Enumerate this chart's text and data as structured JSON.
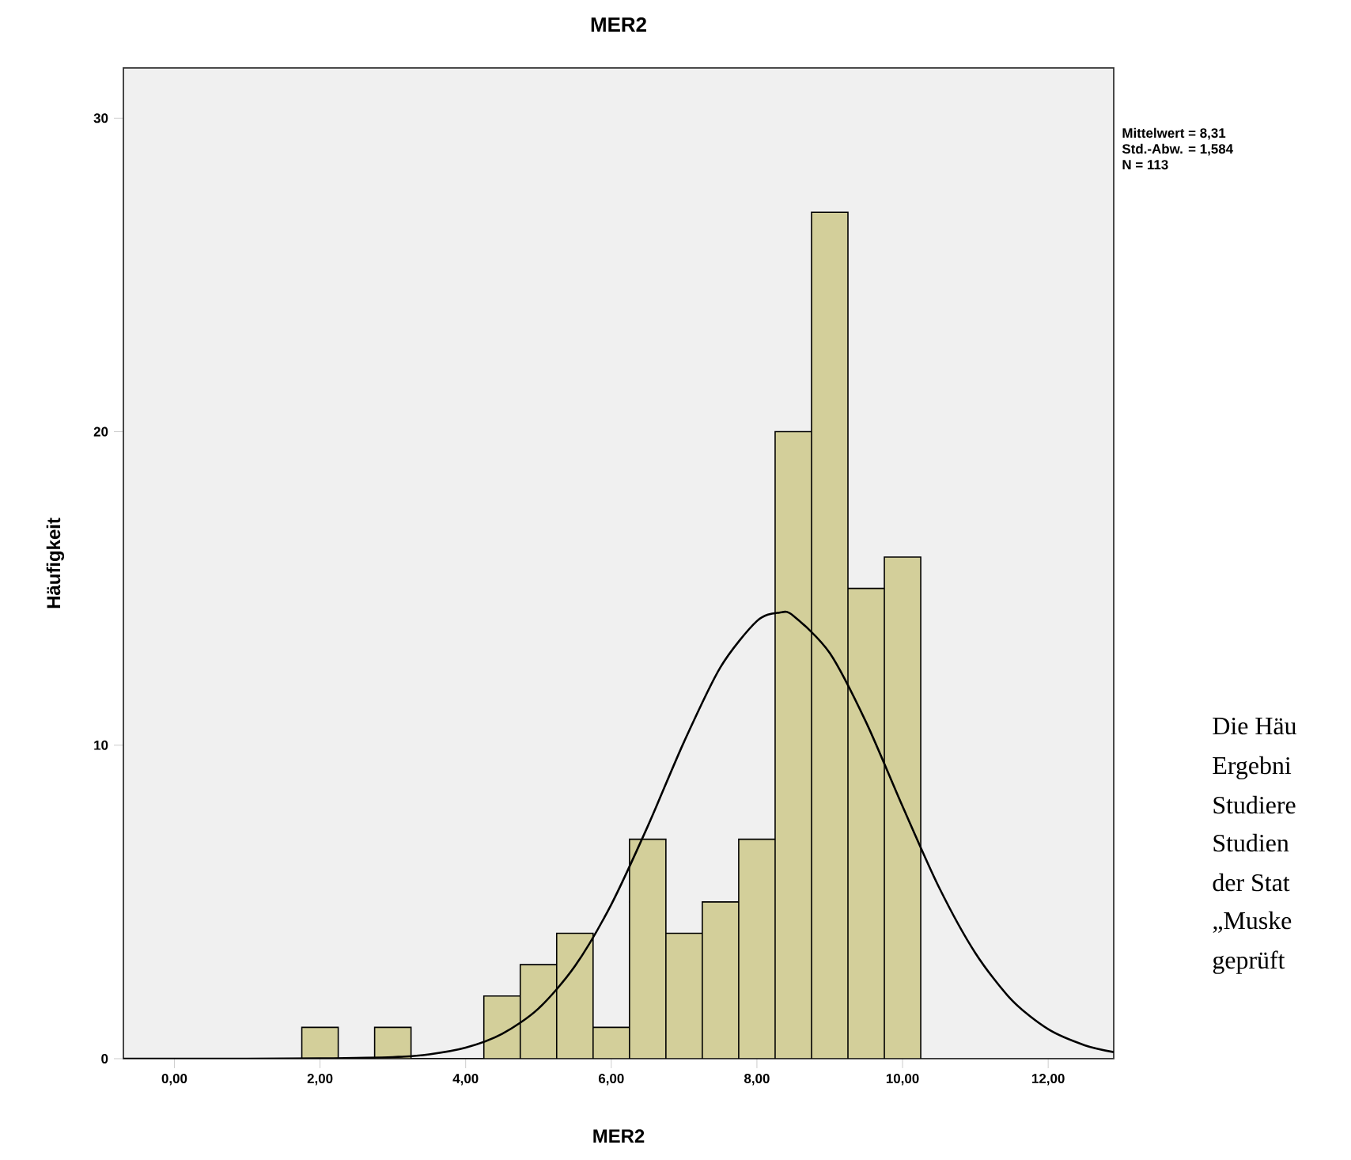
{
  "chart_data": {
    "type": "histogram",
    "title": "MER2",
    "xlabel": "MER2",
    "ylabel": "Häufigkeit",
    "bins": [
      1.75,
      2.25,
      2.75,
      3.25,
      3.75,
      4.25,
      4.75,
      5.25,
      5.75,
      6.25,
      6.75,
      7.25,
      7.75,
      8.25,
      8.75,
      9.25,
      9.75,
      10.25
    ],
    "values": [
      1,
      0,
      1,
      0,
      0,
      2,
      3,
      4,
      1,
      7,
      4,
      5,
      7,
      20,
      27,
      15,
      16
    ],
    "color": "#d3cf9a",
    "series": [
      {
        "type": "line",
        "color": "#000000",
        "x": [
          -0.7,
          0,
          1,
          2,
          3,
          3.5,
          4,
          4.5,
          5,
          5.5,
          6,
          6.5,
          7,
          7.5,
          8,
          8.31,
          8.5,
          9,
          9.5,
          10,
          10.5,
          11,
          11.5,
          12,
          12.5,
          12.9
        ],
        "values": [
          0,
          0,
          0,
          0.01,
          0.05,
          0.14,
          0.35,
          0.79,
          1.6,
          2.95,
          4.92,
          7.41,
          10.11,
          12.49,
          13.96,
          14.23,
          14.13,
          12.94,
          10.73,
          8.05,
          5.47,
          3.37,
          1.87,
          0.94,
          0.43,
          0.21
        ]
      }
    ],
    "xlim": [
      -0.7,
      12.9
    ],
    "ylim": [
      0,
      31.6
    ],
    "xticks": [
      {
        "value": 0,
        "label": "0,00"
      },
      {
        "value": 2,
        "label": "2,00"
      },
      {
        "value": 4,
        "label": "4,00"
      },
      {
        "value": 6,
        "label": "6,00"
      },
      {
        "value": 8,
        "label": "8,00"
      },
      {
        "value": 10,
        "label": "10,00"
      },
      {
        "value": 12,
        "label": "12,00"
      }
    ],
    "yticks": [
      0,
      10,
      20,
      30
    ],
    "annotations": [
      "Mittelwert = 8,31",
      "Std.-Abw. =  1,584",
      "N = 113",
      "Die Häu",
      "Ergebni",
      "Studiere",
      "Studien",
      "der Stat",
      "„Muske",
      "geprüft"
    ]
  }
}
